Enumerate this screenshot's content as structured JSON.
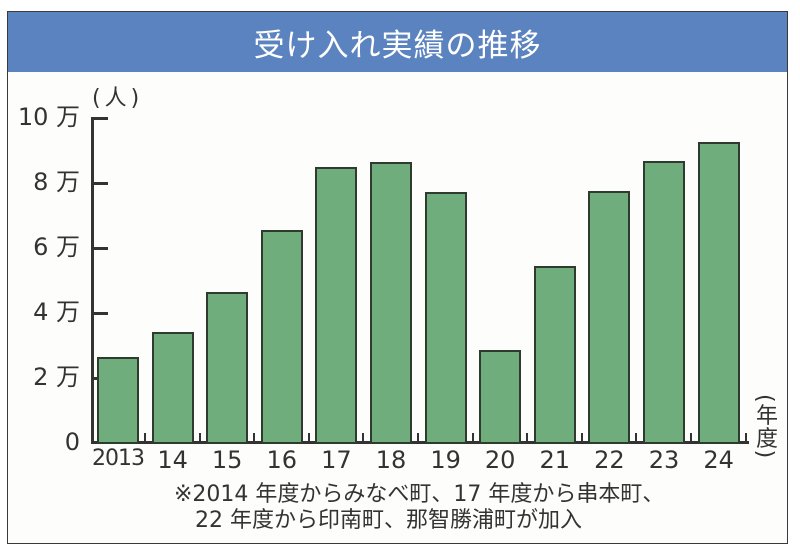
{
  "chart_data": {
    "type": "bar",
    "title": "受け入れ実績の推移",
    "ylabel": "(人)",
    "xlabel": "(年度)",
    "categories": [
      "2013",
      "14",
      "15",
      "16",
      "17",
      "18",
      "19",
      "20",
      "21",
      "22",
      "23",
      "24"
    ],
    "values": [
      26500,
      34200,
      46500,
      65500,
      85000,
      86500,
      77300,
      28600,
      54500,
      77600,
      86800,
      92600
    ],
    "ylim": [
      0,
      100000
    ],
    "yticks": [
      0,
      20000,
      40000,
      60000,
      80000,
      100000
    ],
    "ytick_labels": [
      "0",
      "2 万",
      "4 万",
      "6 万",
      "8 万",
      "10 万"
    ],
    "grid": false,
    "legend": null,
    "bar_color": "#6fae7c",
    "bar_edge_color": "#2f3b2f",
    "header_color": "#5b83bf",
    "annotations": [
      "※2014 年度からみなべ町、17 年度から串本町、",
      "22 年度から印南町、那智勝浦町が加入"
    ]
  },
  "header": {
    "title": "受け入れ実績の推移"
  },
  "axis": {
    "y_unit": "(人)",
    "x_unit": "(年度)"
  },
  "note": {
    "line1": "※2014 年度からみなべ町、17 年度から串本町、",
    "line2": "   22 年度から印南町、那智勝浦町が加入"
  }
}
